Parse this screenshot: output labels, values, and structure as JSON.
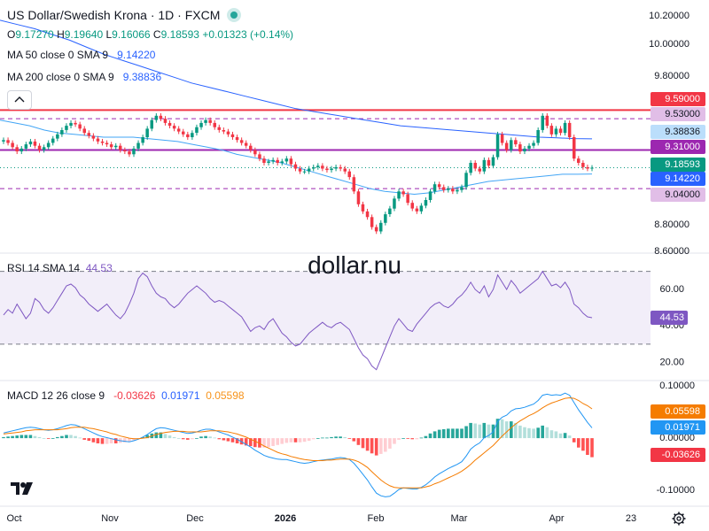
{
  "header": {
    "title": "US Dollar/Swedish Krona · 1D · FXCM",
    "ohlc": {
      "o_label": "O",
      "o_value": "9.17270",
      "h_label": "H",
      "h_value": "9.19640",
      "l_label": "L",
      "l_value": "9.16066",
      "c_label": "C",
      "c_value": "9.18593",
      "change": "+0.01323 (+0.14%)"
    },
    "ma50": {
      "label": "MA 50 close 0 SMA 9",
      "value": "9.14220"
    },
    "ma200": {
      "label": "MA 200 close 0 SMA 9",
      "value": "9.38836"
    },
    "collapse_icon": "chevron-up-icon"
  },
  "watermark": "dollar.nu",
  "rsi": {
    "label": "RSI 14 SMA 14",
    "value": "44.53"
  },
  "macd": {
    "label": "MACD 12 26 close 9",
    "value1": "-0.03626",
    "value2": "0.01971",
    "value3": "0.05598"
  },
  "colors": {
    "up": "#089981",
    "down": "#f23645",
    "ma50": "#2962ff",
    "rsi": "#7e57c2",
    "macd_signal": "#f57c00"
  },
  "settings_icon": "gear-icon",
  "logo_icon": "tradingview-logo-icon",
  "chart_data": [
    {
      "type": "candlestick",
      "title": "US Dollar/Swedish Krona · 1D · FXCM",
      "x_ticks": [
        "Oct",
        "Nov",
        "Dec",
        "2026",
        "Feb",
        "Mar",
        "Apr",
        "23"
      ],
      "y_ticks": [
        "10.20000",
        "10.00000",
        "9.80000",
        "8.80000",
        "8.60000"
      ],
      "ylim": [
        8.6,
        10.25
      ],
      "grid": false,
      "price_tags": [
        {
          "value": 9.59,
          "label": "9.59000",
          "kind": "resistance"
        },
        {
          "value": 9.53,
          "label": "9.53000",
          "kind": "dashed"
        },
        {
          "value": 9.38836,
          "label": "9.38836",
          "kind": "ma200"
        },
        {
          "value": 9.31,
          "label": "9.31000",
          "kind": "level"
        },
        {
          "value": 9.18593,
          "label": "9.18593",
          "kind": "last"
        },
        {
          "value": 9.1422,
          "label": "9.14220",
          "kind": "ma50"
        },
        {
          "value": 9.04,
          "label": "9.04000",
          "kind": "dashed"
        }
      ],
      "series_close": [
        9.38,
        9.36,
        9.33,
        9.3,
        9.32,
        9.35,
        9.37,
        9.34,
        9.31,
        9.33,
        9.36,
        9.39,
        9.42,
        9.45,
        9.48,
        9.5,
        9.49,
        9.46,
        9.43,
        9.41,
        9.39,
        9.37,
        9.36,
        9.35,
        9.33,
        9.34,
        9.31,
        9.3,
        9.28,
        9.32,
        9.36,
        9.4,
        9.46,
        9.52,
        9.55,
        9.53,
        9.5,
        9.48,
        9.46,
        9.44,
        9.42,
        9.4,
        9.43,
        9.47,
        9.5,
        9.52,
        9.5,
        9.47,
        9.45,
        9.44,
        9.42,
        9.4,
        9.38,
        9.36,
        9.34,
        9.31,
        9.28,
        9.25,
        9.22,
        9.23,
        9.24,
        9.22,
        9.23,
        9.25,
        9.21,
        9.18,
        9.16,
        9.16,
        9.18,
        9.19,
        9.2,
        9.18,
        9.17,
        9.18,
        9.19,
        9.18,
        9.16,
        9.12,
        9.02,
        8.93,
        8.88,
        8.84,
        8.77,
        8.74,
        8.8,
        8.86,
        8.9,
        8.97,
        9.02,
        9.0,
        8.94,
        8.9,
        8.88,
        8.92,
        8.96,
        9.02,
        9.07,
        9.05,
        9.03,
        9.04,
        9.02,
        9.03,
        9.05,
        9.15,
        9.22,
        9.18,
        9.16,
        9.24,
        9.2,
        9.26,
        9.42,
        9.36,
        9.31,
        9.38,
        9.35,
        9.3,
        9.32,
        9.34,
        9.36,
        9.45,
        9.55,
        9.48,
        9.42,
        9.46,
        9.43,
        9.5,
        9.4,
        9.25,
        9.22,
        9.19,
        9.18,
        9.18593
      ],
      "ma50_close": [
        9.52,
        9.5,
        9.48,
        9.45,
        9.43,
        9.42,
        9.41,
        9.4,
        9.4,
        9.4,
        9.39,
        9.38,
        9.37,
        9.35,
        9.33,
        9.31,
        9.28,
        9.26,
        9.24,
        9.22,
        9.19,
        9.16,
        9.13,
        9.1,
        9.07,
        9.04,
        9.02,
        9.01,
        9.0,
        9.01,
        9.03,
        9.05,
        9.07,
        9.09,
        9.1,
        9.11,
        9.12,
        9.13,
        9.14,
        9.14,
        9.1422
      ],
      "ma200_close": [
        10.22,
        10.19,
        10.16,
        10.12,
        10.08,
        10.03,
        9.98,
        9.94,
        9.9,
        9.86,
        9.82,
        9.78,
        9.75,
        9.72,
        9.69,
        9.66,
        9.63,
        9.6,
        9.58,
        9.56,
        9.54,
        9.52,
        9.5,
        9.48,
        9.47,
        9.46,
        9.45,
        9.44,
        9.43,
        9.42,
        9.41,
        9.4,
        9.395,
        9.39,
        9.38836
      ]
    },
    {
      "type": "line",
      "title": "RSI 14 SMA 14",
      "y_ticks": [
        "60.00",
        "40.00",
        "20.00"
      ],
      "ylim": [
        10,
        80
      ],
      "bands": [
        70,
        30
      ],
      "last_value": 44.53,
      "values": [
        46,
        49,
        47,
        52,
        48,
        44,
        47,
        55,
        53,
        49,
        47,
        50,
        54,
        58,
        62,
        63,
        61,
        57,
        55,
        52,
        50,
        48,
        50,
        52,
        49,
        46,
        44,
        47,
        52,
        58,
        66,
        69,
        67,
        62,
        58,
        56,
        55,
        52,
        50,
        52,
        55,
        58,
        60,
        62,
        60,
        58,
        55,
        53,
        54,
        53,
        51,
        49,
        47,
        45,
        41,
        37,
        39,
        40,
        38,
        42,
        44,
        40,
        36,
        34,
        31,
        29,
        30,
        33,
        36,
        38,
        40,
        42,
        40,
        39,
        41,
        42,
        40,
        38,
        33,
        28,
        24,
        22,
        18,
        16,
        22,
        28,
        34,
        40,
        44,
        41,
        38,
        37,
        41,
        44,
        47,
        50,
        52,
        53,
        51,
        50,
        52,
        55,
        57,
        60,
        64,
        60,
        58,
        62,
        56,
        60,
        68,
        64,
        60,
        65,
        62,
        58,
        60,
        62,
        64,
        66,
        70,
        66,
        62,
        63,
        61,
        64,
        60,
        52,
        50,
        47,
        45,
        44.53
      ]
    },
    {
      "type": "bar",
      "title": "MACD 12 26 close 9",
      "y_ticks": [
        "0.10000",
        "0.00000",
        "-0.10000"
      ],
      "ylim": [
        -0.13,
        0.11
      ],
      "macd": [
        0.01,
        0.012,
        0.014,
        0.016,
        0.018,
        0.02,
        0.021,
        0.02,
        0.018,
        0.016,
        0.015,
        0.016,
        0.018,
        0.021,
        0.024,
        0.026,
        0.025,
        0.022,
        0.018,
        0.014,
        0.01,
        0.006,
        0.003,
        0.001,
        -0.001,
        -0.003,
        -0.005,
        -0.006,
        -0.007,
        -0.005,
        -0.002,
        0.002,
        0.007,
        0.013,
        0.018,
        0.02,
        0.019,
        0.017,
        0.015,
        0.013,
        0.011,
        0.009,
        0.01,
        0.012,
        0.015,
        0.017,
        0.017,
        0.015,
        0.012,
        0.009,
        0.006,
        0.002,
        -0.002,
        -0.007,
        -0.012,
        -0.017,
        -0.023,
        -0.028,
        -0.033,
        -0.036,
        -0.038,
        -0.04,
        -0.041,
        -0.041,
        -0.043,
        -0.045,
        -0.047,
        -0.048,
        -0.047,
        -0.045,
        -0.043,
        -0.042,
        -0.041,
        -0.04,
        -0.038,
        -0.037,
        -0.038,
        -0.041,
        -0.048,
        -0.058,
        -0.069,
        -0.08,
        -0.093,
        -0.105,
        -0.11,
        -0.112,
        -0.111,
        -0.105,
        -0.098,
        -0.095,
        -0.096,
        -0.097,
        -0.097,
        -0.094,
        -0.089,
        -0.082,
        -0.074,
        -0.068,
        -0.063,
        -0.058,
        -0.054,
        -0.05,
        -0.045,
        -0.034,
        -0.021,
        -0.014,
        -0.009,
        0.001,
        0.005,
        0.012,
        0.032,
        0.04,
        0.044,
        0.052,
        0.056,
        0.057,
        0.059,
        0.062,
        0.065,
        0.072,
        0.082,
        0.084,
        0.082,
        0.083,
        0.082,
        0.086,
        0.082,
        0.068,
        0.054,
        0.042,
        0.03,
        0.01971
      ],
      "signal": [
        0.008,
        0.009,
        0.01,
        0.011,
        0.012,
        0.014,
        0.015,
        0.016,
        0.016,
        0.016,
        0.016,
        0.016,
        0.016,
        0.017,
        0.018,
        0.02,
        0.021,
        0.021,
        0.021,
        0.019,
        0.018,
        0.016,
        0.014,
        0.012,
        0.009,
        0.007,
        0.004,
        0.002,
        0.0,
        -0.001,
        -0.001,
        0.0,
        0.001,
        0.004,
        0.007,
        0.009,
        0.011,
        0.012,
        0.013,
        0.013,
        0.013,
        0.012,
        0.012,
        0.012,
        0.012,
        0.013,
        0.014,
        0.014,
        0.014,
        0.013,
        0.012,
        0.01,
        0.008,
        0.005,
        0.002,
        -0.002,
        -0.006,
        -0.01,
        -0.015,
        -0.019,
        -0.023,
        -0.027,
        -0.03,
        -0.032,
        -0.035,
        -0.037,
        -0.039,
        -0.041,
        -0.042,
        -0.043,
        -0.043,
        -0.043,
        -0.042,
        -0.042,
        -0.041,
        -0.04,
        -0.04,
        -0.04,
        -0.042,
        -0.045,
        -0.05,
        -0.056,
        -0.064,
        -0.072,
        -0.08,
        -0.086,
        -0.091,
        -0.094,
        -0.095,
        -0.095,
        -0.095,
        -0.095,
        -0.095,
        -0.095,
        -0.093,
        -0.091,
        -0.087,
        -0.084,
        -0.08,
        -0.076,
        -0.072,
        -0.068,
        -0.063,
        -0.057,
        -0.05,
        -0.042,
        -0.035,
        -0.028,
        -0.021,
        -0.014,
        -0.005,
        0.004,
        0.012,
        0.02,
        0.027,
        0.033,
        0.038,
        0.043,
        0.047,
        0.052,
        0.058,
        0.063,
        0.067,
        0.07,
        0.073,
        0.076,
        0.077,
        0.076,
        0.072,
        0.066,
        0.062,
        0.05598
      ]
    }
  ]
}
